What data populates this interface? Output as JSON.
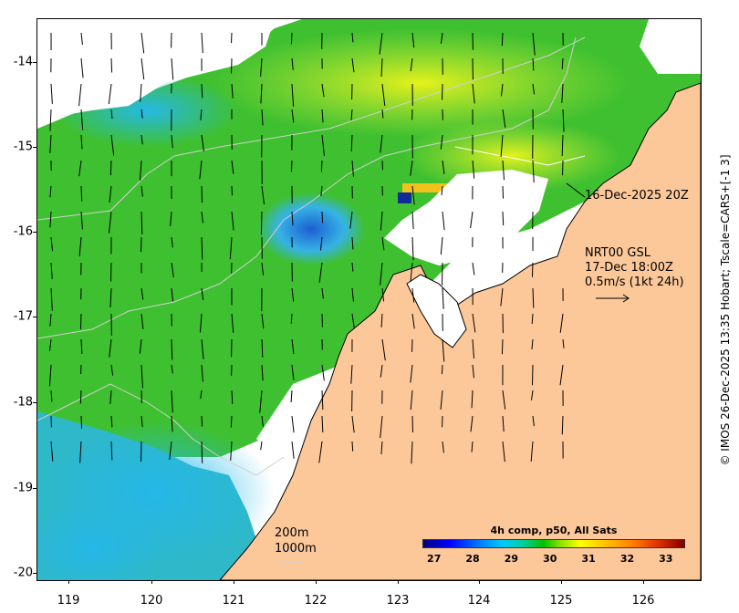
{
  "map": {
    "y_ticks": [
      "-14",
      "-15",
      "-16",
      "-17",
      "-18",
      "-19",
      "-20"
    ],
    "x_ticks": [
      "119",
      "120",
      "121",
      "122",
      "123",
      "124",
      "125",
      "126"
    ],
    "lat_range": [
      -20.1,
      -13.5
    ],
    "lon_range": [
      118.6,
      126.8
    ],
    "colors": {
      "land": "#fdc899",
      "nodata": "#ffffff",
      "contour": "#d0d0d0"
    }
  },
  "annotations": {
    "pass_time": "16-Dec-2025 20Z",
    "current_source": "NRT00 GSL",
    "current_time": "17-Dec 18:00Z",
    "current_scale": "0.5m/s (1kt 24h)",
    "depth_1": "200m",
    "depth_2": "1000m"
  },
  "credit": "© IMOS 26-Dec-2025 13:35 Hobart; Tscale=CARS+[-1 3]",
  "colorbar": {
    "title": "4h comp, p50, All Sats",
    "ticks": [
      "27",
      "28",
      "29",
      "30",
      "31",
      "32",
      "33"
    ],
    "range": [
      26.7,
      33.5
    ]
  }
}
